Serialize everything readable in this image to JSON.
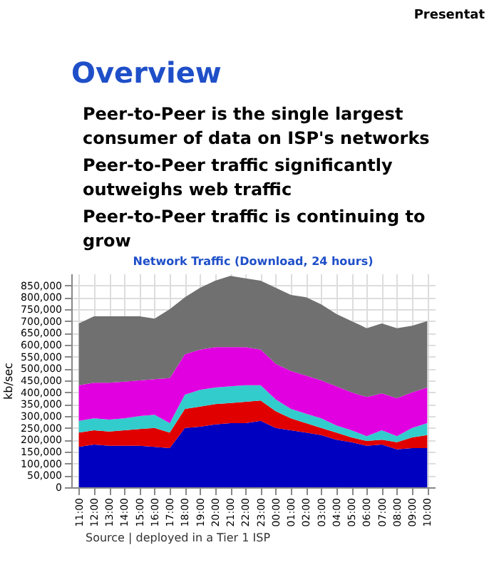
{
  "chart_data": {
    "type": "area",
    "stacked": true,
    "title": "Network Traffic (Download, 24 hours)",
    "ylabel": "kb/sec",
    "annotations": [
      "Presentat",
      "Overview",
      "Peer-to-Peer is the single largest consumer of data on ISP's networks",
      "Peer-to-Peer traffic significantly outweighs web traffic",
      "Peer-to-Peer traffic is continuing to grow",
      "Source | deployed in a Tier 1 ISP"
    ],
    "categories": [
      "11:00",
      "12:00",
      "13:00",
      "14:00",
      "15:00",
      "16:00",
      "17:00",
      "18:00",
      "19:00",
      "20:00",
      "21:00",
      "22:00",
      "23:00",
      "00:00",
      "01:00",
      "02:00",
      "03:00",
      "04:00",
      "05:00",
      "06:00",
      "07:00",
      "08:00",
      "09:00",
      "10:00"
    ],
    "series": [
      {
        "color": "#0000c0",
        "values": [
          170000,
          180000,
          175000,
          175000,
          175000,
          170000,
          165000,
          250000,
          255000,
          265000,
          270000,
          270000,
          280000,
          250000,
          240000,
          230000,
          220000,
          200000,
          190000,
          175000,
          180000,
          160000,
          165000,
          165000
        ]
      },
      {
        "color": "#e00000",
        "values": [
          60000,
          60000,
          60000,
          65000,
          70000,
          80000,
          65000,
          80000,
          85000,
          85000,
          85000,
          90000,
          85000,
          70000,
          50000,
          40000,
          30000,
          30000,
          20000,
          20000,
          20000,
          30000,
          45000,
          55000
        ]
      },
      {
        "color": "#33cccc",
        "values": [
          50000,
          50000,
          50000,
          50000,
          55000,
          55000,
          40000,
          60000,
          70000,
          70000,
          70000,
          70000,
          65000,
          50000,
          40000,
          40000,
          40000,
          30000,
          30000,
          20000,
          40000,
          25000,
          40000,
          50000
        ]
      },
      {
        "color": "#e000e0",
        "values": [
          150000,
          150000,
          155000,
          155000,
          150000,
          150000,
          190000,
          170000,
          170000,
          170000,
          165000,
          160000,
          150000,
          150000,
          160000,
          160000,
          160000,
          165000,
          160000,
          165000,
          155000,
          160000,
          150000,
          150000
        ]
      },
      {
        "color": "#707070",
        "values": [
          260000,
          280000,
          280000,
          275000,
          270000,
          255000,
          290000,
          240000,
          260000,
          280000,
          300000,
          290000,
          290000,
          320000,
          320000,
          330000,
          320000,
          305000,
          300000,
          290000,
          295000,
          295000,
          280000,
          280000
        ]
      }
    ],
    "ylim": [
      0,
      900000
    ],
    "yticks": [
      0,
      {
        "value": 50000,
        "label": "50,000"
      },
      {
        "value": 100000,
        "label": "100,000"
      },
      {
        "value": 150000,
        "label": "150,000"
      },
      {
        "value": 200000,
        "label": "200,000"
      },
      {
        "value": 250000,
        "label": "250,000"
      },
      {
        "value": 300000,
        "label": "300,000"
      },
      {
        "value": 350000,
        "label": "350,000"
      },
      {
        "value": 400000,
        "label": "400,000"
      },
      {
        "value": 450000,
        "label": "450,000"
      },
      {
        "value": 500000,
        "label": "500,000"
      },
      {
        "value": 550000,
        "label": "550,000"
      },
      {
        "value": 600000,
        "label": "600,000"
      },
      {
        "value": 650000,
        "label": "650,000"
      },
      {
        "value": 700000,
        "label": "700,000"
      },
      {
        "value": 750000,
        "label": "750,000"
      },
      {
        "value": 800000,
        "label": "800,000"
      },
      {
        "value": 850000,
        "label": "850,000"
      }
    ],
    "grid": true
  }
}
